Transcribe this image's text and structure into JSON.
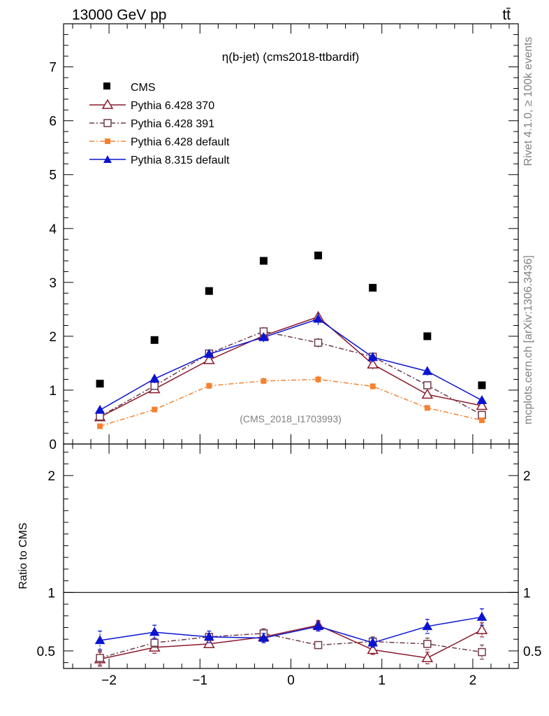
{
  "header": {
    "left": "13000 GeV pp",
    "right": "tt̄"
  },
  "side": {
    "rivet": "Rivet 4.1.0, ≥ 100k events",
    "mcplots": "mcplots.cern.ch [arXiv:1306.3436]"
  },
  "chart_data": {
    "type": "scatter",
    "title": "η(b-jet) (cms2018-ttbardif)",
    "analysis_label": "(CMS_2018_I1703993)",
    "xlabel": "",
    "ylabel": "",
    "ratio_ylabel": "Ratio to CMS",
    "xlim": [
      -2.5,
      2.5
    ],
    "ylim": [
      0,
      7.8
    ],
    "ratio_ylim": [
      0.35,
      2.27
    ],
    "x_ticks": [
      -2,
      -1,
      0,
      1,
      2
    ],
    "x_tick_labels": [
      "−2",
      "−1",
      "0",
      "1",
      "2"
    ],
    "y_ticks": [
      0,
      1,
      2,
      3,
      4,
      5,
      6,
      7
    ],
    "y_tick_labels": [
      "0",
      "1",
      "2",
      "3",
      "4",
      "5",
      "6",
      "7"
    ],
    "ratio_ticks": [
      0.5,
      1,
      2
    ],
    "ratio_tick_labels": [
      "0.5",
      "1",
      "2"
    ],
    "x": [
      -2.1,
      -1.5,
      -0.9,
      -0.3,
      0.3,
      0.9,
      1.5,
      2.1
    ],
    "data": {
      "name": "CMS",
      "color": "#000000",
      "values": [
        1.12,
        1.93,
        2.84,
        3.4,
        3.5,
        2.9,
        2.0,
        1.09
      ]
    },
    "series": [
      {
        "name": "Pythia 6.428 370",
        "color": "#8b1a2b",
        "marker": "triangle-open",
        "dash": "",
        "values": [
          0.5,
          1.02,
          1.56,
          2.01,
          2.36,
          1.48,
          0.92,
          0.71
        ],
        "errors": [
          0.05,
          0.07,
          0.06,
          0.07,
          0.1,
          0.09,
          0.07,
          0.06
        ],
        "ratio": [
          0.43,
          0.53,
          0.56,
          0.62,
          0.72,
          0.51,
          0.44,
          0.68
        ],
        "ratio_errors": [
          0.06,
          0.05,
          0.03,
          0.04,
          0.04,
          0.04,
          0.05,
          0.06
        ]
      },
      {
        "name": "Pythia 6.428 391",
        "color": "#6e3a4a",
        "marker": "square-open",
        "dash": "7,3,2,3",
        "values": [
          0.51,
          1.08,
          1.68,
          2.09,
          1.88,
          1.62,
          1.09,
          0.54
        ],
        "errors": [
          0.05,
          0.06,
          0.06,
          0.08,
          0.09,
          0.08,
          0.06,
          0.05
        ],
        "ratio": [
          0.44,
          0.57,
          0.62,
          0.65,
          0.55,
          0.58,
          0.56,
          0.49
        ],
        "ratio_errors": [
          0.06,
          0.04,
          0.03,
          0.04,
          0.03,
          0.04,
          0.05,
          0.06
        ]
      },
      {
        "name": "Pythia 6.428 default",
        "color": "#f58232",
        "marker": "square-filled",
        "dash": "7,3,2,3",
        "values": [
          0.33,
          0.64,
          1.08,
          1.17,
          1.2,
          1.07,
          0.67,
          0.44
        ],
        "errors": [
          0.04,
          0.05,
          0.06,
          0.06,
          0.07,
          0.06,
          0.05,
          0.04
        ],
        "ratio": [],
        "ratio_errors": []
      },
      {
        "name": "Pythia 8.315 default",
        "color": "#0a14d2",
        "marker": "triangle-filled",
        "dash": "",
        "values": [
          0.63,
          1.21,
          1.67,
          1.98,
          2.32,
          1.61,
          1.35,
          0.81
        ],
        "errors": [
          0.06,
          0.08,
          0.08,
          0.09,
          0.11,
          0.09,
          0.08,
          0.07
        ],
        "ratio": [
          0.59,
          0.66,
          0.62,
          0.61,
          0.71,
          0.57,
          0.71,
          0.79
        ],
        "ratio_errors": [
          0.08,
          0.06,
          0.05,
          0.04,
          0.04,
          0.04,
          0.06,
          0.07
        ]
      }
    ]
  }
}
